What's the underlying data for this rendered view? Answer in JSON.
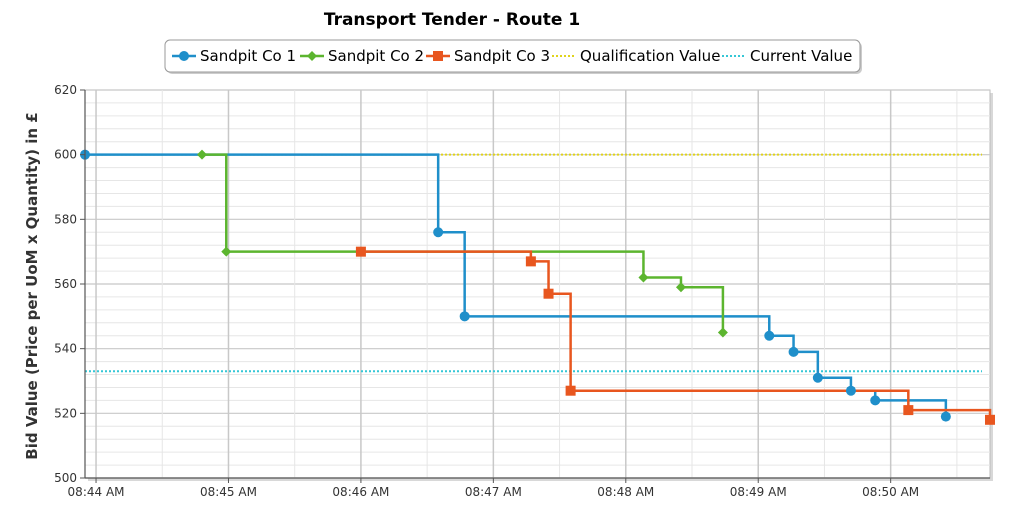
{
  "chart_data": {
    "type": "line",
    "title": "Transport Tender - Route 1",
    "ylabel": "Bid Value (Price per UoM x Quantity) in £",
    "xlabel": "",
    "ylim": [
      500,
      620
    ],
    "xlim": [
      "08:43:55",
      "08:50:45"
    ],
    "yticks": [
      500,
      520,
      540,
      560,
      580,
      600,
      620
    ],
    "xticks": [
      "08:44 AM",
      "08:45 AM",
      "08:46 AM",
      "08:47 AM",
      "08:48 AM",
      "08:49 AM",
      "08:50 AM"
    ],
    "grid": true,
    "legend_position": "top",
    "step": true,
    "series": [
      {
        "name": "Sandpit Co 1",
        "color": "#1f8fca",
        "marker": "circle",
        "points": [
          [
            "08:43:55",
            600
          ],
          [
            "08:46:35",
            576
          ],
          [
            "08:46:47",
            550
          ],
          [
            "08:49:05",
            544
          ],
          [
            "08:49:16",
            539
          ],
          [
            "08:49:27",
            531
          ],
          [
            "08:49:42",
            527
          ],
          [
            "08:49:53",
            524
          ],
          [
            "08:50:25",
            519
          ]
        ]
      },
      {
        "name": "Sandpit Co 2",
        "color": "#5cb52f",
        "marker": "diamond",
        "points": [
          [
            "08:44:48",
            600
          ],
          [
            "08:44:59",
            570
          ],
          [
            "08:48:08",
            562
          ],
          [
            "08:48:25",
            559
          ],
          [
            "08:48:44",
            545
          ]
        ]
      },
      {
        "name": "Sandpit Co 3",
        "color": "#e8561f",
        "marker": "square",
        "points": [
          [
            "08:46:00",
            570
          ],
          [
            "08:47:17",
            567
          ],
          [
            "08:47:25",
            557
          ],
          [
            "08:47:35",
            527
          ],
          [
            "08:50:08",
            521
          ],
          [
            "08:50:45",
            518
          ]
        ]
      },
      {
        "name": "Qualification Value",
        "color": "#e0d31c",
        "dotted": true,
        "value": 600
      },
      {
        "name": "Current Value",
        "color": "#35c7d6",
        "dotted": true,
        "value": 533
      }
    ]
  }
}
